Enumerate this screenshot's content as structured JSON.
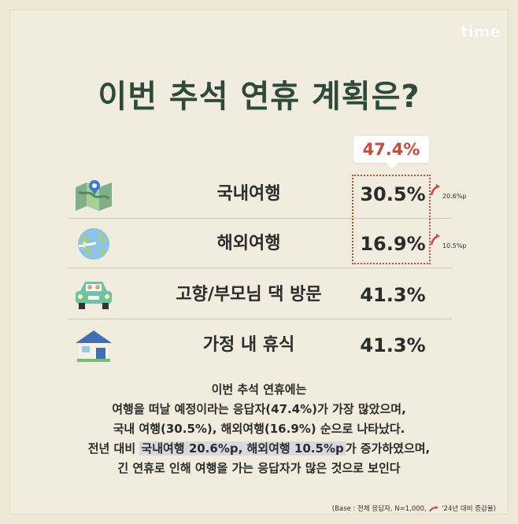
{
  "logo": "time",
  "title": "이번 추석 연휴 계획은?",
  "travel_total": "47.4%",
  "rows": [
    {
      "label": "국내여행",
      "value": "30.5%",
      "delta": "20.6%p"
    },
    {
      "label": "해외여행",
      "value": "16.9%",
      "delta": "10.5%p"
    },
    {
      "label": "고향/부모님 댁 방문",
      "value": "41.3%"
    },
    {
      "label": "가정 내 휴식",
      "value": "41.3%"
    }
  ],
  "summary": {
    "line1": "이번 추석 연휴에는",
    "line2": "여행을 떠날 예정이라는 응답자(47.4%)가 가장 많았으며,",
    "line3": "국내 여행(30.5%), 해외여행(16.9%) 순으로 나타났다.",
    "line4_pre": "전년 대비 ",
    "line4_hl": "국내여행 20.6%p, 해외여행 10.5%p",
    "line4_post": "가 증가하였으며,",
    "line5": "긴 연휴로 인해 여행을 가는 응답자가 많은 것으로 보인다"
  },
  "footnote": {
    "base": "(Base : 전체 응답자, N=1,000,",
    "compare": "'24년 대비 증감율)"
  },
  "colors": {
    "accent": "#c94a3e",
    "title": "#2d4a3a",
    "background": "#f2ecde"
  },
  "icons": [
    "map-icon",
    "globe-plane-icon",
    "car-icon",
    "house-icon",
    "up-arrow-icon"
  ]
}
